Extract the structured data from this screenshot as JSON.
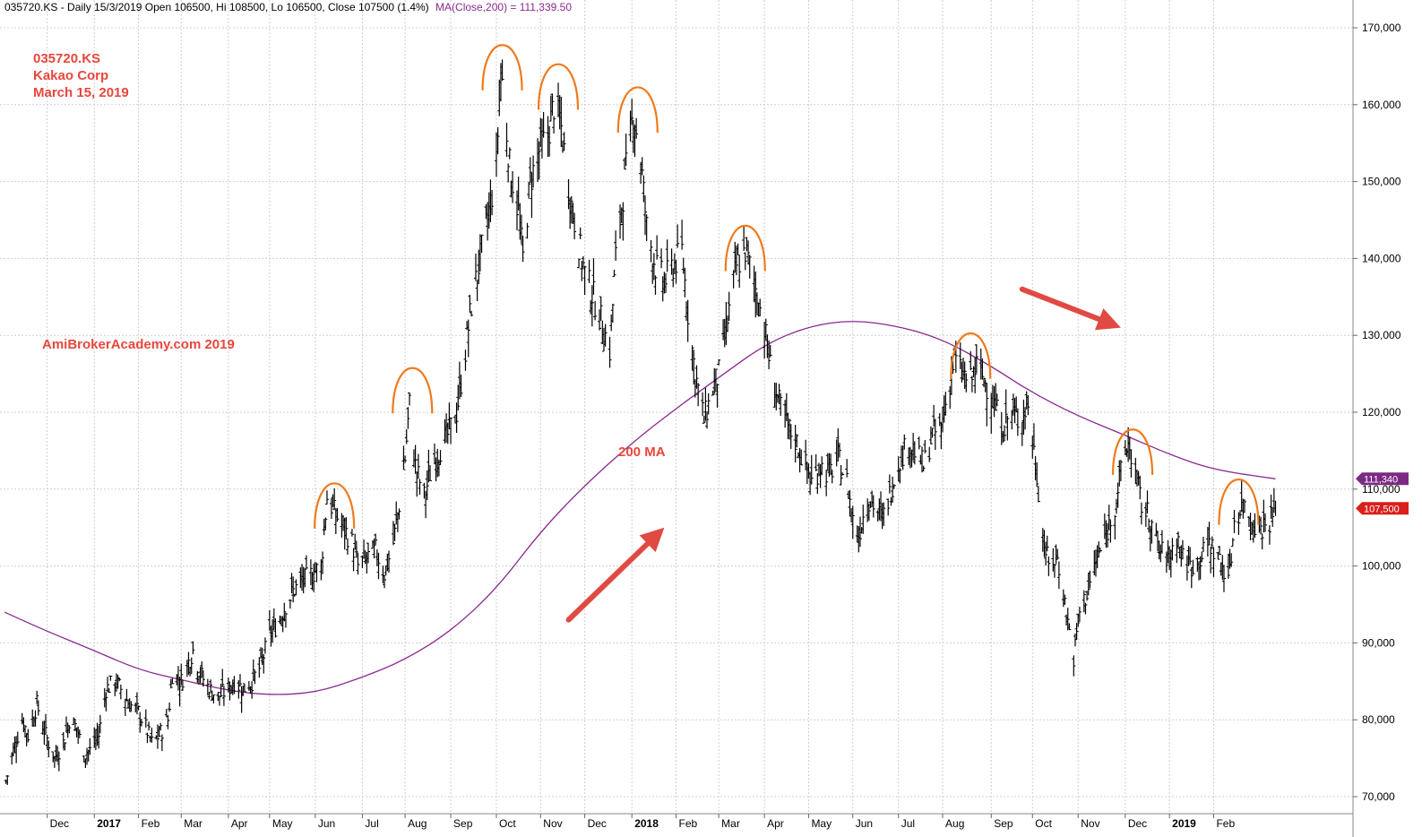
{
  "header": {
    "prefix": "035720.KS - Daily 15/3/2019 Open 106500, Hi 108500, Lo 106500, Close 107500 (1.4%)",
    "ma_text": "MA(Close,200) = 111,339.50"
  },
  "annotations": {
    "ticker": "035720.KS",
    "company": "Kakao Corp",
    "date": "March 15, 2019",
    "watermark": "AmiBrokerAcademy.com  2019",
    "ma_label": "200 MA"
  },
  "colors": {
    "background": "#ffffff",
    "grid": "#d0d0d0",
    "price": "#000000",
    "ma": "#8b2a8f",
    "annotation_text": "#e8473c",
    "arc": "#f07a1c",
    "arrow": "#e04a43",
    "ma_tag": "#7b2a84",
    "close_tag": "#d8201c"
  },
  "chart_data": {
    "type": "line",
    "title": "035720.KS",
    "y_axis": {
      "range": [
        68000,
        173000
      ],
      "ticks": [
        70000,
        80000,
        90000,
        100000,
        110000,
        120000,
        130000,
        140000,
        150000,
        160000,
        170000
      ],
      "tick_labels": [
        "70,000",
        "80,000",
        "90,000",
        "100,000",
        "110,000",
        "120,000",
        "130,000",
        "140,000",
        "150,000",
        "160,000",
        "170,000"
      ],
      "side": "right"
    },
    "x_axis": {
      "range": [
        "2016-11-02",
        "2019-03-22"
      ],
      "months": [
        {
          "label": "Dec",
          "date": "2016-12-01"
        },
        {
          "label": "2017",
          "date": "2017-01-02",
          "bold": true
        },
        {
          "label": "Feb",
          "date": "2017-02-01"
        },
        {
          "label": "Mar",
          "date": "2017-03-02"
        },
        {
          "label": "Apr",
          "date": "2017-04-03"
        },
        {
          "label": "May",
          "date": "2017-05-01"
        },
        {
          "label": "Jun",
          "date": "2017-06-01"
        },
        {
          "label": "Jul",
          "date": "2017-07-03"
        },
        {
          "label": "Aug",
          "date": "2017-08-01"
        },
        {
          "label": "Sep",
          "date": "2017-09-01"
        },
        {
          "label": "Oct",
          "date": "2017-10-02"
        },
        {
          "label": "Nov",
          "date": "2017-11-01"
        },
        {
          "label": "Dec",
          "date": "2017-12-01"
        },
        {
          "label": "2018",
          "date": "2018-01-02",
          "bold": true
        },
        {
          "label": "Feb",
          "date": "2018-02-01"
        },
        {
          "label": "Mar",
          "date": "2018-03-02"
        },
        {
          "label": "Apr",
          "date": "2018-04-02"
        },
        {
          "label": "May",
          "date": "2018-05-02"
        },
        {
          "label": "Jun",
          "date": "2018-06-01"
        },
        {
          "label": "Jul",
          "date": "2018-07-02"
        },
        {
          "label": "Aug",
          "date": "2018-08-01"
        },
        {
          "label": "Sep",
          "date": "2018-09-03"
        },
        {
          "label": "Oct",
          "date": "2018-10-01"
        },
        {
          "label": "Nov",
          "date": "2018-11-01"
        },
        {
          "label": "Dec",
          "date": "2018-12-03"
        },
        {
          "label": "2019",
          "date": "2019-01-02",
          "bold": true
        },
        {
          "label": "Feb",
          "date": "2019-02-01"
        }
      ]
    },
    "grid": true,
    "price_series": {
      "name": "035720.KS",
      "style": "ohlc-bars",
      "points": [
        [
          "2016-11-03",
          72000
        ],
        [
          "2016-11-08",
          76000
        ],
        [
          "2016-11-14",
          80000
        ],
        [
          "2016-11-18",
          78000
        ],
        [
          "2016-11-24",
          82000
        ],
        [
          "2016-11-30",
          78000
        ],
        [
          "2016-12-06",
          75000
        ],
        [
          "2016-12-12",
          77000
        ],
        [
          "2016-12-16",
          80000
        ],
        [
          "2016-12-21",
          79000
        ],
        [
          "2016-12-26",
          75500
        ],
        [
          "2016-12-30",
          76000
        ],
        [
          "2017-01-05",
          78000
        ],
        [
          "2017-01-10",
          84000
        ],
        [
          "2017-01-16",
          85000
        ],
        [
          "2017-01-20",
          84000
        ],
        [
          "2017-01-26",
          82000
        ],
        [
          "2017-02-01",
          81000
        ],
        [
          "2017-02-06",
          79000
        ],
        [
          "2017-02-10",
          77000
        ],
        [
          "2017-02-15",
          78000
        ],
        [
          "2017-02-21",
          80000
        ],
        [
          "2017-02-24",
          86000
        ],
        [
          "2017-03-02",
          85000
        ],
        [
          "2017-03-08",
          88000
        ],
        [
          "2017-03-10",
          89000
        ],
        [
          "2017-03-15",
          86000
        ],
        [
          "2017-03-21",
          84000
        ],
        [
          "2017-03-27",
          83000
        ],
        [
          "2017-04-03",
          84000
        ],
        [
          "2017-04-07",
          85000
        ],
        [
          "2017-04-13",
          84000
        ],
        [
          "2017-04-19",
          85000
        ],
        [
          "2017-04-25",
          87000
        ],
        [
          "2017-05-01",
          91000
        ],
        [
          "2017-05-08",
          93000
        ],
        [
          "2017-05-12",
          95000
        ],
        [
          "2017-05-18",
          97000
        ],
        [
          "2017-05-24",
          98000
        ],
        [
          "2017-05-30",
          99000
        ],
        [
          "2017-06-05",
          100000
        ],
        [
          "2017-06-09",
          109000
        ],
        [
          "2017-06-14",
          107000
        ],
        [
          "2017-06-20",
          105000
        ],
        [
          "2017-06-26",
          103000
        ],
        [
          "2017-06-30",
          100000
        ],
        [
          "2017-07-06",
          101000
        ],
        [
          "2017-07-12",
          102000
        ],
        [
          "2017-07-18",
          99000
        ],
        [
          "2017-07-24",
          103000
        ],
        [
          "2017-07-28",
          108000
        ],
        [
          "2017-08-01",
          114000
        ],
        [
          "2017-08-04",
          121000
        ],
        [
          "2017-08-08",
          113000
        ],
        [
          "2017-08-14",
          109000
        ],
        [
          "2017-08-18",
          112000
        ],
        [
          "2017-08-24",
          115000
        ],
        [
          "2017-08-30",
          117000
        ],
        [
          "2017-09-05",
          120000
        ],
        [
          "2017-09-11",
          128000
        ],
        [
          "2017-09-15",
          134000
        ],
        [
          "2017-09-21",
          140000
        ],
        [
          "2017-09-27",
          146000
        ],
        [
          "2017-10-02",
          152000
        ],
        [
          "2017-10-05",
          165000
        ],
        [
          "2017-10-11",
          152000
        ],
        [
          "2017-10-17",
          146000
        ],
        [
          "2017-10-20",
          140000
        ],
        [
          "2017-10-25",
          150000
        ],
        [
          "2017-10-31",
          154000
        ],
        [
          "2017-11-06",
          156000
        ],
        [
          "2017-11-10",
          160000
        ],
        [
          "2017-11-15",
          157000
        ],
        [
          "2017-11-21",
          148000
        ],
        [
          "2017-11-27",
          142000
        ],
        [
          "2017-12-01",
          138000
        ],
        [
          "2017-12-07",
          135000
        ],
        [
          "2017-12-12",
          132000
        ],
        [
          "2017-12-18",
          128000
        ],
        [
          "2017-12-22",
          140000
        ],
        [
          "2017-12-28",
          150000
        ],
        [
          "2018-01-03",
          159000
        ],
        [
          "2018-01-08",
          153000
        ],
        [
          "2018-01-12",
          144000
        ],
        [
          "2018-01-18",
          139000
        ],
        [
          "2018-01-24",
          137000
        ],
        [
          "2018-01-30",
          139000
        ],
        [
          "2018-02-05",
          141000
        ],
        [
          "2018-02-09",
          133000
        ],
        [
          "2018-02-14",
          125000
        ],
        [
          "2018-02-20",
          119000
        ],
        [
          "2018-02-26",
          123000
        ],
        [
          "2018-03-02",
          125000
        ],
        [
          "2018-03-08",
          132000
        ],
        [
          "2018-03-14",
          139000
        ],
        [
          "2018-03-20",
          141000
        ],
        [
          "2018-03-26",
          137000
        ],
        [
          "2018-04-02",
          131000
        ],
        [
          "2018-04-06",
          126000
        ],
        [
          "2018-04-12",
          121000
        ],
        [
          "2018-04-18",
          118000
        ],
        [
          "2018-04-24",
          116000
        ],
        [
          "2018-04-30",
          113000
        ],
        [
          "2018-05-04",
          111000
        ],
        [
          "2018-05-10",
          113000
        ],
        [
          "2018-05-16",
          112000
        ],
        [
          "2018-05-22",
          114000
        ],
        [
          "2018-05-28",
          111000
        ],
        [
          "2018-06-01",
          106000
        ],
        [
          "2018-06-05",
          104000
        ],
        [
          "2018-06-11",
          109000
        ],
        [
          "2018-06-15",
          108000
        ],
        [
          "2018-06-21",
          106000
        ],
        [
          "2018-06-27",
          110000
        ],
        [
          "2018-07-03",
          114000
        ],
        [
          "2018-07-09",
          116000
        ],
        [
          "2018-07-13",
          115000
        ],
        [
          "2018-07-19",
          113000
        ],
        [
          "2018-07-25",
          117000
        ],
        [
          "2018-07-31",
          118000
        ],
        [
          "2018-08-03",
          121000
        ],
        [
          "2018-08-09",
          127000
        ],
        [
          "2018-08-14",
          125000
        ],
        [
          "2018-08-20",
          124000
        ],
        [
          "2018-08-24",
          126000
        ],
        [
          "2018-08-30",
          124000
        ],
        [
          "2018-09-05",
          121000
        ],
        [
          "2018-09-11",
          118000
        ],
        [
          "2018-09-17",
          120000
        ],
        [
          "2018-09-21",
          119000
        ],
        [
          "2018-09-28",
          121000
        ],
        [
          "2018-10-04",
          112000
        ],
        [
          "2018-10-08",
          104000
        ],
        [
          "2018-10-12",
          100000
        ],
        [
          "2018-10-18",
          101000
        ],
        [
          "2018-10-24",
          94000
        ],
        [
          "2018-10-29",
          88000
        ],
        [
          "2018-11-02",
          94000
        ],
        [
          "2018-11-08",
          97000
        ],
        [
          "2018-11-14",
          101000
        ],
        [
          "2018-11-20",
          104000
        ],
        [
          "2018-11-26",
          108000
        ],
        [
          "2018-11-30",
          112000
        ],
        [
          "2018-12-05",
          116000
        ],
        [
          "2018-12-10",
          112000
        ],
        [
          "2018-12-14",
          108000
        ],
        [
          "2018-12-20",
          106000
        ],
        [
          "2018-12-26",
          102000
        ],
        [
          "2019-01-02",
          101000
        ],
        [
          "2019-01-07",
          104000
        ],
        [
          "2019-01-11",
          101000
        ],
        [
          "2019-01-17",
          100000
        ],
        [
          "2019-01-23",
          101000
        ],
        [
          "2019-01-29",
          103000
        ],
        [
          "2019-02-01",
          102000
        ],
        [
          "2019-02-07",
          100000
        ],
        [
          "2019-02-12",
          99000
        ],
        [
          "2019-02-15",
          106000
        ],
        [
          "2019-02-21",
          108000
        ],
        [
          "2019-02-27",
          106000
        ],
        [
          "2019-03-05",
          105000
        ],
        [
          "2019-03-11",
          106000
        ],
        [
          "2019-03-15",
          107500
        ]
      ]
    },
    "ma_series": {
      "name": "MA(Close,200)",
      "points": [
        [
          "2016-11-02",
          94000
        ],
        [
          "2016-12-01",
          91500
        ],
        [
          "2017-01-02",
          89000
        ],
        [
          "2017-02-01",
          86500
        ],
        [
          "2017-03-02",
          85200
        ],
        [
          "2017-04-03",
          83800
        ],
        [
          "2017-05-01",
          83200
        ],
        [
          "2017-06-01",
          83500
        ],
        [
          "2017-07-03",
          85500
        ],
        [
          "2017-08-01",
          87800
        ],
        [
          "2017-09-01",
          91500
        ],
        [
          "2017-10-02",
          97000
        ],
        [
          "2017-11-01",
          104500
        ],
        [
          "2017-12-01",
          110500
        ],
        [
          "2018-01-02",
          116000
        ],
        [
          "2018-02-01",
          120500
        ],
        [
          "2018-03-02",
          124500
        ],
        [
          "2018-04-02",
          128800
        ],
        [
          "2018-05-02",
          131200
        ],
        [
          "2018-06-01",
          132000
        ],
        [
          "2018-07-02",
          131200
        ],
        [
          "2018-08-01",
          129500
        ],
        [
          "2018-09-03",
          126000
        ],
        [
          "2018-10-01",
          122500
        ],
        [
          "2018-11-01",
          119500
        ],
        [
          "2018-12-03",
          117000
        ],
        [
          "2019-01-02",
          114500
        ],
        [
          "2019-02-01",
          112500
        ],
        [
          "2019-03-15",
          111340
        ]
      ]
    },
    "price_tags": [
      {
        "label": "111,340",
        "value": 111340,
        "color": "ma_tag"
      },
      {
        "label": "107,500",
        "value": 107500,
        "color": "close_tag"
      }
    ],
    "peak_arcs": [
      {
        "center_date": "2017-06-14",
        "peak_value": 111500
      },
      {
        "center_date": "2017-08-06",
        "peak_value": 126500
      },
      {
        "center_date": "2017-10-06",
        "peak_value": 168500
      },
      {
        "center_date": "2017-11-13",
        "peak_value": 166000
      },
      {
        "center_date": "2018-01-06",
        "peak_value": 163000
      },
      {
        "center_date": "2018-03-20",
        "peak_value": 145000
      },
      {
        "center_date": "2018-08-20",
        "peak_value": 131000
      },
      {
        "center_date": "2018-12-08",
        "peak_value": 118500
      },
      {
        "center_date": "2019-02-18",
        "peak_value": 112000
      }
    ],
    "arrows": [
      {
        "from": [
          "2017-11-20",
          93000
        ],
        "to": [
          "2018-01-24",
          105000
        ],
        "direction": "up"
      },
      {
        "from": [
          "2018-09-24",
          136000
        ],
        "to": [
          "2018-11-30",
          131000
        ],
        "direction": "down"
      }
    ]
  }
}
